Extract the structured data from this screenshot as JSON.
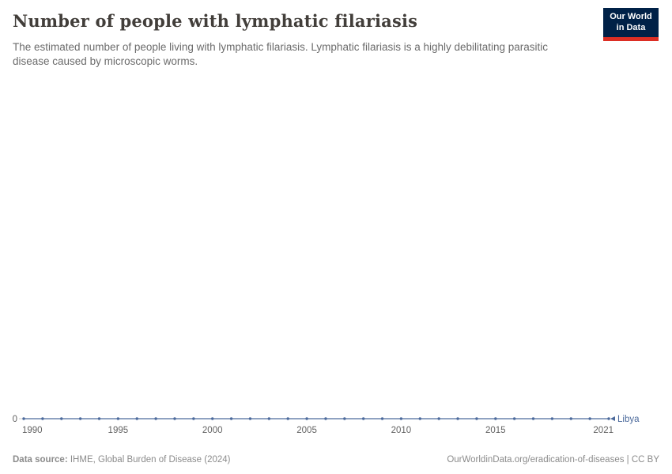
{
  "header": {
    "title": "Number of people with lymphatic filariasis",
    "subtitle": "The estimated number of people living with lymphatic filariasis. Lymphatic filariasis is a highly debilitating parasitic disease caused by microscopic worms.",
    "logo": {
      "line1": "Our World",
      "line2": "in Data",
      "bg_color": "#002147",
      "accent_color": "#dc2e24"
    }
  },
  "chart_data": {
    "type": "line",
    "title": "Number of people with lymphatic filariasis",
    "x": [
      1990,
      1991,
      1992,
      1993,
      1994,
      1995,
      1996,
      1997,
      1998,
      1999,
      2000,
      2001,
      2002,
      2003,
      2004,
      2005,
      2006,
      2007,
      2008,
      2009,
      2010,
      2011,
      2012,
      2013,
      2014,
      2015,
      2016,
      2017,
      2018,
      2019,
      2020,
      2021
    ],
    "series": [
      {
        "name": "Libya",
        "color": "#4c6a9c",
        "values": [
          0,
          0,
          0,
          0,
          0,
          0,
          0,
          0,
          0,
          0,
          0,
          0,
          0,
          0,
          0,
          0,
          0,
          0,
          0,
          0,
          0,
          0,
          0,
          0,
          0,
          0,
          0,
          0,
          0,
          0,
          0,
          0
        ]
      }
    ],
    "x_ticks": [
      1990,
      1995,
      2000,
      2005,
      2010,
      2015,
      2021
    ],
    "y_ticks": [
      0
    ],
    "xlim": [
      1990,
      2021
    ],
    "ylim": [
      0,
      1
    ],
    "grid": "zero-line-only",
    "legend": "end-of-line-label",
    "markers": true
  },
  "footer": {
    "source_label": "Data source:",
    "source_text": " IHME, Global Burden of Disease (2024)",
    "attribution": "OurWorldinData.org/eradication-of-diseases | CC BY"
  }
}
